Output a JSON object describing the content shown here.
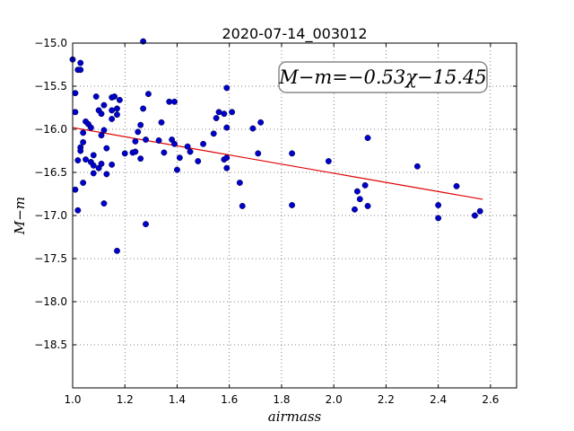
{
  "chart_data": {
    "type": "scatter",
    "title": "2020-07-14_003012",
    "xlabel": "airmass",
    "ylabel": "M−m",
    "xlim": [
      1.0,
      2.7
    ],
    "ylim": [
      -15.0,
      -19.0
    ],
    "y_inverted": true,
    "xticks": [
      1.0,
      1.2,
      1.4,
      1.6,
      1.8,
      2.0,
      2.2,
      2.4,
      2.6
    ],
    "xtick_labels": [
      "1.0",
      "1.2",
      "1.4",
      "1.6",
      "1.8",
      "2.0",
      "2.2",
      "2.4",
      "2.6"
    ],
    "yticks": [
      -15.0,
      -15.5,
      -16.0,
      -16.5,
      -17.0,
      -17.5,
      -18.0,
      -18.5
    ],
    "ytick_labels": [
      "−15.0",
      "−15.5",
      "−16.0",
      "−16.5",
      "−17.0",
      "−17.5",
      "−18.0",
      "−18.5"
    ],
    "grid": true,
    "annotation": "M−m=−0.53χ−15.45",
    "fit": {
      "slope": -0.53,
      "intercept": -15.45,
      "x_range": [
        1.0,
        2.57
      ],
      "color": "#e00000"
    },
    "marker_color": "#0000cc",
    "points": [
      {
        "x": 1.0,
        "y": -15.19
      },
      {
        "x": 1.01,
        "y": -15.58
      },
      {
        "x": 1.01,
        "y": -15.8
      },
      {
        "x": 1.02,
        "y": -15.31
      },
      {
        "x": 1.03,
        "y": -15.23
      },
      {
        "x": 1.03,
        "y": -15.31
      },
      {
        "x": 1.01,
        "y": -16.7
      },
      {
        "x": 1.02,
        "y": -16.36
      },
      {
        "x": 1.03,
        "y": -16.21
      },
      {
        "x": 1.03,
        "y": -16.25
      },
      {
        "x": 1.04,
        "y": -16.15
      },
      {
        "x": 1.04,
        "y": -16.04
      },
      {
        "x": 1.05,
        "y": -16.35
      },
      {
        "x": 1.05,
        "y": -15.91
      },
      {
        "x": 1.06,
        "y": -15.94
      },
      {
        "x": 1.07,
        "y": -15.98
      },
      {
        "x": 1.04,
        "y": -16.62
      },
      {
        "x": 1.02,
        "y": -16.94
      },
      {
        "x": 1.07,
        "y": -16.38
      },
      {
        "x": 1.08,
        "y": -16.3
      },
      {
        "x": 1.08,
        "y": -16.42
      },
      {
        "x": 1.08,
        "y": -16.51
      },
      {
        "x": 1.09,
        "y": -15.62
      },
      {
        "x": 1.1,
        "y": -15.78
      },
      {
        "x": 1.11,
        "y": -15.82
      },
      {
        "x": 1.11,
        "y": -16.07
      },
      {
        "x": 1.1,
        "y": -16.45
      },
      {
        "x": 1.11,
        "y": -16.4
      },
      {
        "x": 1.12,
        "y": -15.72
      },
      {
        "x": 1.12,
        "y": -16.01
      },
      {
        "x": 1.13,
        "y": -16.22
      },
      {
        "x": 1.13,
        "y": -16.52
      },
      {
        "x": 1.12,
        "y": -16.86
      },
      {
        "x": 1.15,
        "y": -15.63
      },
      {
        "x": 1.15,
        "y": -15.78
      },
      {
        "x": 1.15,
        "y": -15.88
      },
      {
        "x": 1.16,
        "y": -15.62
      },
      {
        "x": 1.17,
        "y": -15.76
      },
      {
        "x": 1.17,
        "y": -15.83
      },
      {
        "x": 1.18,
        "y": -15.66
      },
      {
        "x": 1.15,
        "y": -16.41
      },
      {
        "x": 1.17,
        "y": -17.41
      },
      {
        "x": 1.2,
        "y": -16.28
      },
      {
        "x": 1.23,
        "y": -16.27
      },
      {
        "x": 1.24,
        "y": -16.14
      },
      {
        "x": 1.24,
        "y": -16.26
      },
      {
        "x": 1.25,
        "y": -16.03
      },
      {
        "x": 1.26,
        "y": -15.95
      },
      {
        "x": 1.26,
        "y": -16.34
      },
      {
        "x": 1.27,
        "y": -15.76
      },
      {
        "x": 1.27,
        "y": -14.98
      },
      {
        "x": 1.28,
        "y": -16.12
      },
      {
        "x": 1.28,
        "y": -17.1
      },
      {
        "x": 1.29,
        "y": -15.59
      },
      {
        "x": 1.33,
        "y": -16.13
      },
      {
        "x": 1.34,
        "y": -15.92
      },
      {
        "x": 1.35,
        "y": -16.27
      },
      {
        "x": 1.37,
        "y": -15.68
      },
      {
        "x": 1.38,
        "y": -16.12
      },
      {
        "x": 1.39,
        "y": -15.68
      },
      {
        "x": 1.39,
        "y": -16.17
      },
      {
        "x": 1.4,
        "y": -16.47
      },
      {
        "x": 1.41,
        "y": -16.33
      },
      {
        "x": 1.44,
        "y": -16.2
      },
      {
        "x": 1.45,
        "y": -16.26
      },
      {
        "x": 1.48,
        "y": -16.37
      },
      {
        "x": 1.5,
        "y": -16.17
      },
      {
        "x": 1.54,
        "y": -16.05
      },
      {
        "x": 1.55,
        "y": -15.87
      },
      {
        "x": 1.56,
        "y": -15.8
      },
      {
        "x": 1.58,
        "y": -15.82
      },
      {
        "x": 1.58,
        "y": -16.35
      },
      {
        "x": 1.59,
        "y": -16.33
      },
      {
        "x": 1.59,
        "y": -16.45
      },
      {
        "x": 1.59,
        "y": -15.98
      },
      {
        "x": 1.59,
        "y": -15.52
      },
      {
        "x": 1.61,
        "y": -15.8
      },
      {
        "x": 1.64,
        "y": -16.62
      },
      {
        "x": 1.65,
        "y": -16.89
      },
      {
        "x": 1.69,
        "y": -15.99
      },
      {
        "x": 1.71,
        "y": -16.28
      },
      {
        "x": 1.72,
        "y": -15.92
      },
      {
        "x": 1.84,
        "y": -16.28
      },
      {
        "x": 1.84,
        "y": -16.88
      },
      {
        "x": 1.98,
        "y": -16.37
      },
      {
        "x": 2.08,
        "y": -16.93
      },
      {
        "x": 2.09,
        "y": -16.72
      },
      {
        "x": 2.1,
        "y": -16.81
      },
      {
        "x": 2.12,
        "y": -16.65
      },
      {
        "x": 2.13,
        "y": -16.1
      },
      {
        "x": 2.13,
        "y": -16.89
      },
      {
        "x": 2.32,
        "y": -16.43
      },
      {
        "x": 2.4,
        "y": -16.88
      },
      {
        "x": 2.4,
        "y": -17.03
      },
      {
        "x": 2.47,
        "y": -16.66
      },
      {
        "x": 2.54,
        "y": -17.0
      },
      {
        "x": 2.56,
        "y": -16.95
      }
    ]
  }
}
